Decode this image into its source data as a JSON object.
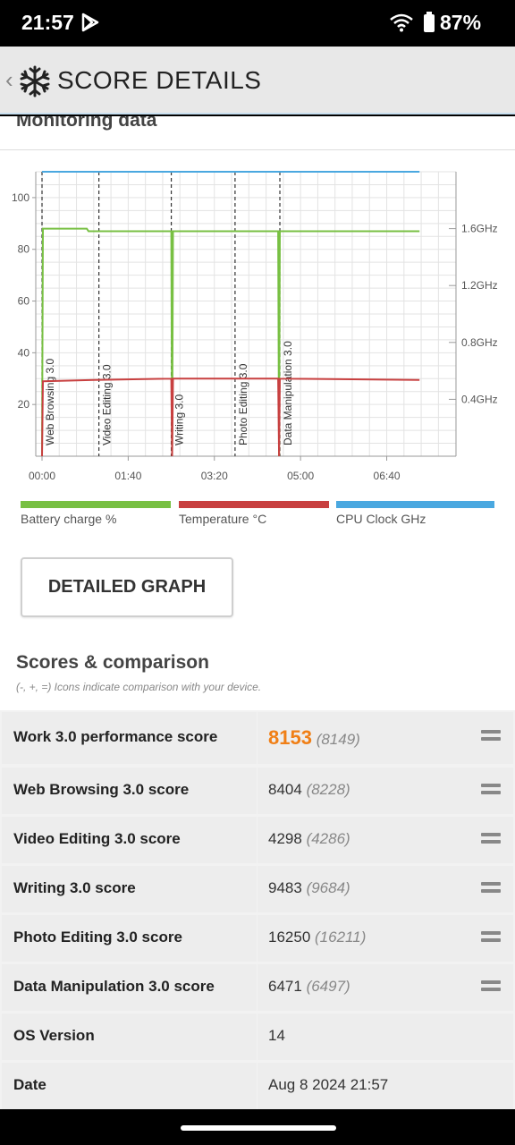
{
  "status": {
    "time": "21:57",
    "battery_pct": "87%"
  },
  "header": {
    "title": "SCORE DETAILS"
  },
  "monitoring": {
    "title": "Monitoring data",
    "legend": [
      {
        "label": "Battery charge %",
        "color": "#78c043"
      },
      {
        "label": "Temperature °C",
        "color": "#c84040"
      },
      {
        "label": "CPU Clock GHz",
        "color": "#4aa8e0"
      }
    ]
  },
  "chart_data": {
    "type": "line",
    "x_ticks": [
      "00:00",
      "01:40",
      "03:20",
      "05:00",
      "06:40"
    ],
    "x_range_seconds": [
      0,
      470
    ],
    "y_left_ticks": [
      "20",
      "40",
      "60",
      "80",
      "100"
    ],
    "y_left_range": [
      0,
      110
    ],
    "y_right_ticks": [
      "0.4GHz",
      "0.8GHz",
      "1.2GHz",
      "1.6GHz"
    ],
    "y_right_range_ghz": [
      0,
      2.0
    ],
    "markers": [
      {
        "label": "Web Browsing 3.0",
        "t": 0
      },
      {
        "label": "Video Editing 3.0",
        "t": 66
      },
      {
        "label": "Writing 3.0",
        "t": 150
      },
      {
        "label": "Photo Editing 3.0",
        "t": 224
      },
      {
        "label": "Data Manipulation 3.0",
        "t": 276
      }
    ],
    "series": [
      {
        "name": "Battery charge %",
        "axis": "left",
        "points": [
          [
            0,
            0
          ],
          [
            1,
            88
          ],
          [
            52,
            88
          ],
          [
            54,
            87
          ],
          [
            150,
            87
          ],
          [
            151,
            0
          ],
          [
            152,
            87
          ],
          [
            274,
            87
          ],
          [
            275,
            0
          ],
          [
            276,
            87
          ],
          [
            438,
            87
          ]
        ]
      },
      {
        "name": "Temperature °C",
        "axis": "left",
        "points": [
          [
            0,
            0
          ],
          [
            1,
            29
          ],
          [
            60,
            29.5
          ],
          [
            150,
            30
          ],
          [
            151,
            0
          ],
          [
            152,
            30
          ],
          [
            274,
            30
          ],
          [
            275,
            0
          ],
          [
            276,
            30
          ],
          [
            438,
            29.5
          ]
        ]
      },
      {
        "name": "CPU Clock GHz",
        "axis": "right",
        "points": [
          [
            0,
            2.0
          ],
          [
            438,
            2.0
          ]
        ]
      }
    ]
  },
  "detailed_button": {
    "label": "DETAILED GRAPH"
  },
  "scores": {
    "title": "Scores & comparison",
    "subtitle": "(-, +, =) Icons indicate comparison with your device.",
    "rows": [
      {
        "label": "Work 3.0 performance score",
        "value": "8153",
        "compare": "(8149)",
        "indicator": "equal"
      },
      {
        "label": "Web Browsing 3.0 score",
        "value": "8404",
        "compare": "(8228)",
        "indicator": "equal"
      },
      {
        "label": "Video Editing 3.0 score",
        "value": "4298",
        "compare": "(4286)",
        "indicator": "equal"
      },
      {
        "label": "Writing 3.0 score",
        "value": "9483",
        "compare": "(9684)",
        "indicator": "equal"
      },
      {
        "label": "Photo Editing 3.0 score",
        "value": "16250",
        "compare": "(16211)",
        "indicator": "equal"
      },
      {
        "label": "Data Manipulation 3.0 score",
        "value": "6471",
        "compare": "(6497)",
        "indicator": "equal"
      },
      {
        "label": "OS Version",
        "value": "14",
        "compare": "",
        "indicator": ""
      },
      {
        "label": "Date",
        "value": "Aug 8 2024 21:57",
        "compare": "",
        "indicator": ""
      }
    ]
  }
}
